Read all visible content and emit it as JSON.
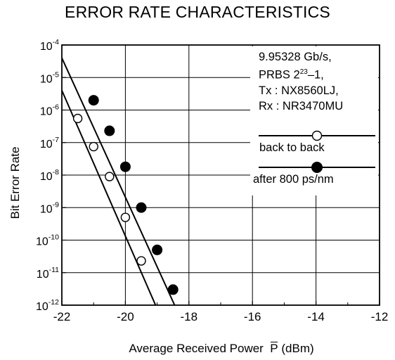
{
  "chart_data": {
    "type": "line",
    "title": "ERROR RATE CHARACTERISTICS",
    "xlabel": "Average Received Power",
    "xlabel_symbol": "P",
    "xlabel_unit": "(dBm)",
    "ylabel": "Bit Error Rate",
    "xlim": [
      -22,
      -12
    ],
    "ylim": [
      1e-12,
      0.0001
    ],
    "yscale": "log",
    "grid": true,
    "x_ticks": [
      "-22",
      "-20",
      "-18",
      "-16",
      "-14",
      "-12"
    ],
    "y_ticks": [
      {
        "value": 0.0001,
        "base": "10",
        "exp": "-4"
      },
      {
        "value": 1e-05,
        "base": "10",
        "exp": "-5"
      },
      {
        "value": 1e-06,
        "base": "10",
        "exp": "-6"
      },
      {
        "value": 1e-07,
        "base": "10",
        "exp": "-7"
      },
      {
        "value": 1e-08,
        "base": "10",
        "exp": "-8"
      },
      {
        "value": 1e-09,
        "base": "10",
        "exp": "-9"
      },
      {
        "value": 1e-10,
        "base": "10",
        "exp": "-10"
      },
      {
        "value": 1e-11,
        "base": "10",
        "exp": "-11"
      },
      {
        "value": 1e-12,
        "base": "10",
        "exp": "-12"
      }
    ],
    "series": [
      {
        "name": "back to back",
        "marker": "open-circle",
        "x": [
          -21.5,
          -21.0,
          -20.5,
          -20.0,
          -19.5
        ],
        "y": [
          5.5e-07,
          7.5e-08,
          9e-09,
          5e-10,
          2.3e-11
        ],
        "fit_line": {
          "x": [
            -22,
            -19.05
          ],
          "y": [
            4e-06,
            1e-12
          ]
        }
      },
      {
        "name": "after 800 ps/nm",
        "marker": "filled-circle",
        "x": [
          -21.0,
          -20.5,
          -20.0,
          -19.5,
          -19.0,
          -18.5
        ],
        "y": [
          2e-06,
          2.3e-07,
          1.8e-08,
          1e-09,
          5e-11,
          3e-12
        ],
        "fit_line": {
          "x": [
            -22,
            -18.45
          ],
          "y": [
            4e-05,
            1e-12
          ]
        }
      }
    ],
    "info_lines": [
      {
        "text": "9.95328 Gb/s,"
      },
      {
        "prefix": "PRBS 2",
        "sup": "23",
        "suffix": "–1,"
      },
      {
        "text": "Tx : NX8560LJ,"
      },
      {
        "text": "Rx : NR3470MU"
      }
    ],
    "legend_position": "top-right inside plot"
  }
}
